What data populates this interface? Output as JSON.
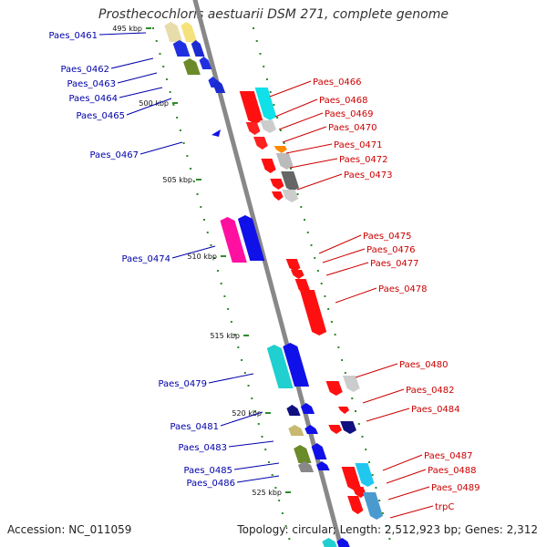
{
  "title": "Prosthecochloris aestuarii DSM 271, complete genome",
  "footer": {
    "accession": "Accession: NC_011059",
    "topology": "Topology: circular; Length: 2,512,923 bp; Genes: 2,312"
  },
  "colors": {
    "backbone": "#888888",
    "left_label": "#0000aa",
    "right_label": "#cc0000",
    "tick": "#2e8b2e"
  },
  "scale_labels": [
    "495 kbp",
    "500 kbp",
    "505 kbp",
    "510 kbp",
    "515 kbp",
    "520 kbp",
    "525 kbp"
  ],
  "left_labels": [
    "Paes_0461",
    "Paes_0462",
    "Paes_0463",
    "Paes_0464",
    "Paes_0465",
    "Paes_0467",
    "Paes_0474",
    "Paes_0479",
    "Paes_0481",
    "Paes_0483",
    "Paes_0485",
    "Paes_0486"
  ],
  "right_labels": [
    "Paes_0466",
    "Paes_0468",
    "Paes_0469",
    "Paes_0470",
    "Paes_0471",
    "Paes_0472",
    "Paes_0473",
    "Paes_0475",
    "Paes_0476",
    "Paes_0477",
    "Paes_0478",
    "Paes_0480",
    "Paes_0482",
    "Paes_0484",
    "Paes_0487",
    "Paes_0488",
    "Paes_0489",
    "trpC"
  ]
}
